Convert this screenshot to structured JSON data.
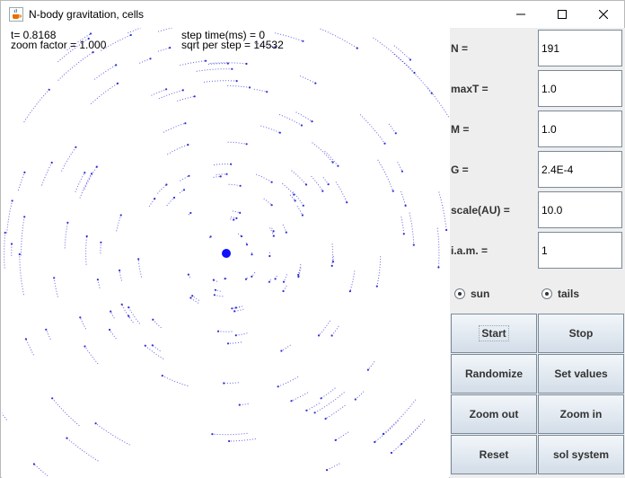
{
  "window": {
    "title": "N-body gravitation, cells",
    "minimize_glyph": "—",
    "maximize_glyph": "☐",
    "close_glyph": "✕"
  },
  "sim": {
    "time_text": "t= 0.8168",
    "zoom_text": "zoom factor = 1.000",
    "step_time_text": "step time(ms) = 0",
    "sqrt_text": "sqrt per step = 14532",
    "colors": {
      "tail": "#2f2fd6",
      "sun": "#1010ff"
    }
  },
  "panel": {
    "fields": [
      {
        "label": "N =",
        "value": "191"
      },
      {
        "label": "maxT =",
        "value": "1.0"
      },
      {
        "label": "M =",
        "value": "1.0"
      },
      {
        "label": "G =",
        "value": "2.4E-4"
      },
      {
        "label": "scale(AU) =",
        "value": "10.0"
      },
      {
        "label": "i.a.m. =",
        "value": "1"
      }
    ],
    "sun_label": "sun",
    "tails_label": "tails",
    "buttons": {
      "start": "Start",
      "stop": "Stop",
      "randomize": "Randomize",
      "set_values": "Set values",
      "zoom_out": "Zoom out",
      "zoom_in": "Zoom in",
      "reset": "Reset",
      "sol_system": "sol system"
    }
  }
}
